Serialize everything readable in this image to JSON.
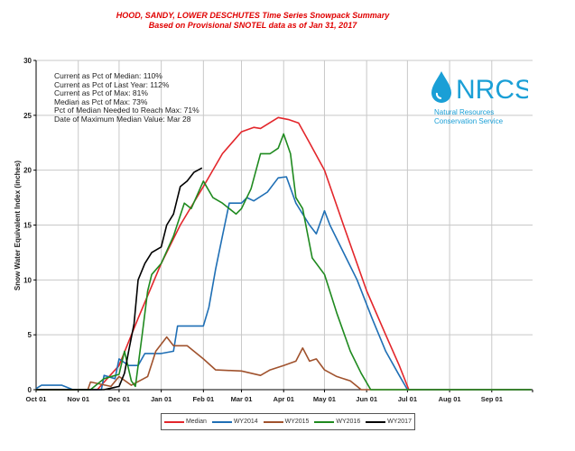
{
  "chart_data": {
    "type": "line",
    "title": "HOOD, SANDY, LOWER DESCHUTES Time Series Snowpack Summary",
    "subtitle": "Based on Provisional SNOTEL data as of Jan 31, 2017",
    "xlabel": "",
    "ylabel": "Snow Water Equivalent Index (inches)",
    "ylim": [
      0,
      30
    ],
    "yticks": [
      "0",
      "5",
      "10",
      "15",
      "20",
      "25",
      "30"
    ],
    "xticks": [
      "Oct 01",
      "Nov 01",
      "Dec 01",
      "Jan 01",
      "Feb 01",
      "Mar 01",
      "Apr 01",
      "May 01",
      "Jun 01",
      "Jul 01",
      "Aug 01",
      "Sep 01"
    ],
    "grid": true,
    "legend_position": "bottom",
    "series": [
      {
        "name": "Median",
        "color": "#e3262b",
        "points": [
          [
            "Oct 01",
            0
          ],
          [
            "Nov 15",
            0
          ],
          [
            "Dec 01",
            2.2
          ],
          [
            "Dec 15",
            6.5
          ],
          [
            "Jan 01",
            11.5
          ],
          [
            "Jan 15",
            15
          ],
          [
            "Feb 01",
            18.5
          ],
          [
            "Feb 15",
            21.5
          ],
          [
            "Mar 01",
            23.5
          ],
          [
            "Mar 10",
            23.9
          ],
          [
            "Mar 15",
            23.8
          ],
          [
            "Mar 28",
            24.8
          ],
          [
            "Apr 05",
            24.6
          ],
          [
            "Apr 12",
            24.3
          ],
          [
            "Apr 20",
            22.5
          ],
          [
            "May 01",
            20
          ],
          [
            "May 15",
            15
          ],
          [
            "Jun 01",
            9
          ],
          [
            "Jun 15",
            5
          ],
          [
            "Jun 25",
            2.2
          ],
          [
            "Jul 02",
            0
          ],
          [
            "Sep 30",
            0
          ]
        ]
      },
      {
        "name": "WY2014",
        "color": "#1f6fb5",
        "points": [
          [
            "Oct 01",
            0.1
          ],
          [
            "Oct 05",
            0.4
          ],
          [
            "Oct 20",
            0.4
          ],
          [
            "Oct 28",
            0
          ],
          [
            "Nov 18",
            0
          ],
          [
            "Nov 20",
            1.3
          ],
          [
            "Nov 28",
            1.0
          ],
          [
            "Dec 01",
            2.8
          ],
          [
            "Dec 08",
            2.2
          ],
          [
            "Dec 15",
            2.2
          ],
          [
            "Dec 20",
            3.3
          ],
          [
            "Jan 01",
            3.3
          ],
          [
            "Jan 10",
            3.5
          ],
          [
            "Jan 13",
            5.8
          ],
          [
            "Feb 01",
            5.8
          ],
          [
            "Feb 05",
            7.5
          ],
          [
            "Feb 10",
            11
          ],
          [
            "Feb 15",
            14
          ],
          [
            "Feb 20",
            17
          ],
          [
            "Mar 01",
            17
          ],
          [
            "Mar 05",
            17.5
          ],
          [
            "Mar 10",
            17.2
          ],
          [
            "Mar 20",
            18
          ],
          [
            "Mar 28",
            19.3
          ],
          [
            "Apr 03",
            19.4
          ],
          [
            "Apr 10",
            17
          ],
          [
            "Apr 20",
            15
          ],
          [
            "Apr 25",
            14.2
          ],
          [
            "May 01",
            16.3
          ],
          [
            "May 05",
            15
          ],
          [
            "May 15",
            12.5
          ],
          [
            "May 25",
            10
          ],
          [
            "Jun 05",
            6.5
          ],
          [
            "Jun 15",
            3.5
          ],
          [
            "Jun 25",
            1.3
          ],
          [
            "Jul 01",
            0
          ],
          [
            "Sep 30",
            0
          ]
        ]
      },
      {
        "name": "WY2015",
        "color": "#a0522d",
        "points": [
          [
            "Oct 01",
            0
          ],
          [
            "Nov 08",
            0
          ],
          [
            "Nov 10",
            0.7
          ],
          [
            "Nov 25",
            0.3
          ],
          [
            "Dec 01",
            1.2
          ],
          [
            "Dec 10",
            0.4
          ],
          [
            "Dec 22",
            1.2
          ],
          [
            "Dec 28",
            3.5
          ],
          [
            "Jan 05",
            4.8
          ],
          [
            "Jan 10",
            4
          ],
          [
            "Jan 20",
            4
          ],
          [
            "Feb 01",
            2.8
          ],
          [
            "Feb 10",
            1.8
          ],
          [
            "Mar 01",
            1.7
          ],
          [
            "Mar 15",
            1.3
          ],
          [
            "Mar 22",
            1.8
          ],
          [
            "Apr 01",
            2.2
          ],
          [
            "Apr 10",
            2.6
          ],
          [
            "Apr 15",
            3.8
          ],
          [
            "Apr 20",
            2.6
          ],
          [
            "Apr 25",
            2.8
          ],
          [
            "May 01",
            1.8
          ],
          [
            "May 10",
            1.2
          ],
          [
            "May 20",
            0.8
          ],
          [
            "May 28",
            0
          ],
          [
            "Sep 30",
            0
          ]
        ]
      },
      {
        "name": "WY2016",
        "color": "#1f8a1f",
        "points": [
          [
            "Oct 01",
            0
          ],
          [
            "Nov 10",
            0
          ],
          [
            "Nov 20",
            1
          ],
          [
            "Dec 01",
            1.4
          ],
          [
            "Dec 05",
            3.5
          ],
          [
            "Dec 10",
            0.8
          ],
          [
            "Dec 13",
            0.3
          ],
          [
            "Dec 18",
            5
          ],
          [
            "Dec 22",
            9
          ],
          [
            "Dec 25",
            10.5
          ],
          [
            "Jan 01",
            11.5
          ],
          [
            "Jan 10",
            14
          ],
          [
            "Jan 18",
            17
          ],
          [
            "Jan 23",
            16.5
          ],
          [
            "Feb 01",
            19
          ],
          [
            "Feb 08",
            17.5
          ],
          [
            "Feb 15",
            17
          ],
          [
            "Feb 25",
            16
          ],
          [
            "Mar 01",
            16.5
          ],
          [
            "Mar 08",
            18.3
          ],
          [
            "Mar 15",
            21.5
          ],
          [
            "Mar 22",
            21.5
          ],
          [
            "Mar 28",
            22
          ],
          [
            "Apr 01",
            23.3
          ],
          [
            "Apr 06",
            21.5
          ],
          [
            "Apr 10",
            17.5
          ],
          [
            "Apr 15",
            16.5
          ],
          [
            "Apr 22",
            12
          ],
          [
            "May 01",
            10.5
          ],
          [
            "May 10",
            7
          ],
          [
            "May 20",
            3.5
          ],
          [
            "May 28",
            1.5
          ],
          [
            "Jun 04",
            0
          ],
          [
            "Sep 30",
            0
          ]
        ]
      },
      {
        "name": "WY2017",
        "color": "#000000",
        "points": [
          [
            "Oct 01",
            0
          ],
          [
            "Nov 20",
            0
          ],
          [
            "Dec 01",
            0.3
          ],
          [
            "Dec 05",
            1.5
          ],
          [
            "Dec 08",
            3.5
          ],
          [
            "Dec 12",
            6
          ],
          [
            "Dec 15",
            10
          ],
          [
            "Dec 20",
            11.5
          ],
          [
            "Dec 25",
            12.5
          ],
          [
            "Jan 01",
            13
          ],
          [
            "Jan 05",
            15
          ],
          [
            "Jan 10",
            16
          ],
          [
            "Jan 15",
            18.5
          ],
          [
            "Jan 20",
            19
          ],
          [
            "Jan 25",
            19.8
          ],
          [
            "Jan 31",
            20.2
          ]
        ]
      }
    ]
  },
  "stats": [
    "Current as Pct of Median:  110%",
    "Current as Pct of Last Year: 112%",
    "Current as Pct of Max: 81%",
    "Median  as Pct of Max: 73%",
    "Pct of Median Needed to Reach Max: 71%",
    "Date of Maximum  Median Value: Mar 28"
  ],
  "logo": {
    "name": "NRCS",
    "line1": "Natural Resources",
    "line2": "Conservation Service",
    "color": "#1a9fd6"
  }
}
